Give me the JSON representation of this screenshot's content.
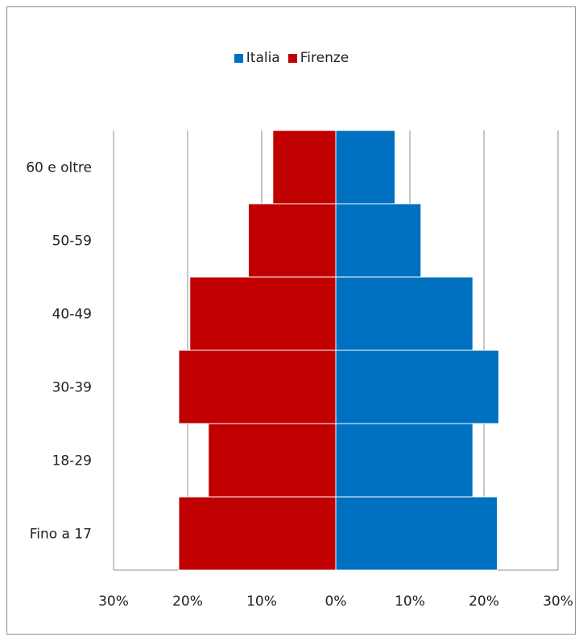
{
  "chart_data": {
    "type": "bar",
    "orientation": "horizontal",
    "categories": [
      "60 e oltre",
      "50-59",
      "40-49",
      "30-39",
      "18-29",
      "Fino a 17"
    ],
    "series": [
      {
        "name": "Italia",
        "color": "#0070C0",
        "values": [
          8,
          11.5,
          18.5,
          22,
          18.5,
          21.8
        ]
      },
      {
        "name": "Firenze",
        "color": "#C00000",
        "values": [
          8.5,
          11.8,
          19.7,
          21.2,
          17.2,
          21.2
        ]
      }
    ],
    "xticks": [
      "30%",
      "20%",
      "10%",
      "0%",
      "10%",
      "20%",
      "30%"
    ],
    "xlim": [
      -30,
      30
    ],
    "grid": true,
    "legend": "top"
  }
}
